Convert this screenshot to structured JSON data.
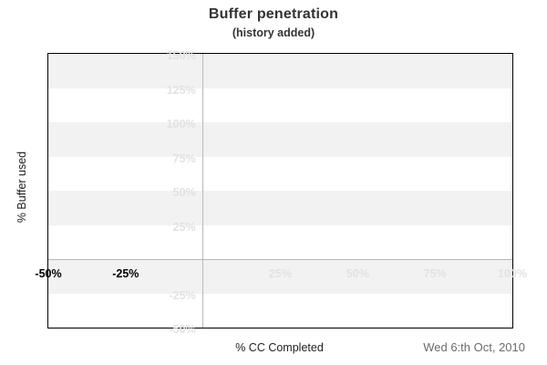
{
  "header": {
    "title": "Buffer penetration",
    "subtitle": "(history added)"
  },
  "footer": {
    "date": "Wed 6:th Oct, 2010"
  },
  "chart_data": {
    "type": "line",
    "title": "Buffer penetration",
    "subtitle": "(history added)",
    "xlabel": "% CC Completed",
    "ylabel": "% Buffer used",
    "xlim": [
      -50,
      100
    ],
    "ylim": [
      -50,
      150
    ],
    "series": [],
    "grid": "zero-lines-only",
    "legend": "none",
    "bands": {
      "interval": 25,
      "first_band_shaded": true
    },
    "zero_lines": {
      "x_at": 0,
      "y_at": 0
    },
    "x_ticks": [
      {
        "value": -50,
        "label": "-50%",
        "style": "history"
      },
      {
        "value": -25,
        "label": "-25%",
        "style": "history"
      },
      {
        "value": 25,
        "label": "25%",
        "style": "faded"
      },
      {
        "value": 50,
        "label": "50%",
        "style": "faded"
      },
      {
        "value": 75,
        "label": "75%",
        "style": "faded"
      },
      {
        "value": 100,
        "label": "100%",
        "style": "faded"
      }
    ],
    "y_ticks": [
      {
        "value": 150,
        "label": "150%"
      },
      {
        "value": 125,
        "label": "125%"
      },
      {
        "value": 100,
        "label": "100%"
      },
      {
        "value": 75,
        "label": "75%"
      },
      {
        "value": 50,
        "label": "50%"
      },
      {
        "value": 25,
        "label": "25%"
      },
      {
        "value": -25,
        "label": "-25%"
      },
      {
        "value": -50,
        "label": "-50%"
      }
    ],
    "colors": {
      "band_shaded": "#f2f2f2",
      "band_plain": "#ffffff",
      "faded_label": "#e2e2e2",
      "history_label": "#000000",
      "gridline": "#b8b8b8",
      "plot_border": "#000000",
      "title_text": "#333333",
      "axis_title_text": "#222222",
      "date_text": "#6b6b6b"
    }
  }
}
